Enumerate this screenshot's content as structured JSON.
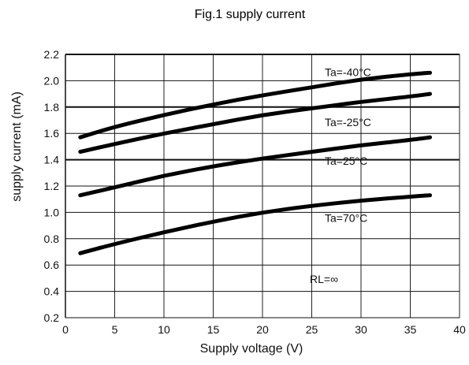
{
  "chart_data": {
    "type": "line",
    "title": "Fig.1 supply current",
    "xlabel": "Supply voltage  (V)",
    "ylabel": "supply current  (mA)",
    "xlim": [
      0,
      40
    ],
    "ylim": [
      0.2,
      2.2
    ],
    "xticks": [
      "0",
      "5",
      "10",
      "15",
      "20",
      "25",
      "30",
      "35",
      "40"
    ],
    "yticks": [
      "0.2",
      "0.4",
      "0.6",
      "0.8",
      "1.0",
      "1.2",
      "1.4",
      "1.6",
      "1.8",
      "2.0",
      "2.2"
    ],
    "grid": true,
    "series": [
      {
        "name": "Ta=-40°C",
        "x": [
          1.5,
          5,
          10,
          15,
          20,
          25,
          30,
          35,
          37
        ],
        "values": [
          1.57,
          1.65,
          1.74,
          1.82,
          1.89,
          1.95,
          2.01,
          2.05,
          2.06
        ]
      },
      {
        "name": "Ta=-25°C",
        "x": [
          1.5,
          5,
          10,
          15,
          20,
          25,
          30,
          35,
          37
        ],
        "values": [
          1.46,
          1.52,
          1.6,
          1.67,
          1.74,
          1.79,
          1.84,
          1.88,
          1.9
        ]
      },
      {
        "name": "Ta=25°C",
        "x": [
          1.5,
          5,
          10,
          15,
          20,
          25,
          30,
          35,
          37
        ],
        "values": [
          1.13,
          1.19,
          1.28,
          1.35,
          1.41,
          1.46,
          1.51,
          1.55,
          1.57
        ]
      },
      {
        "name": "Ta=70°C",
        "x": [
          1.5,
          5,
          10,
          15,
          20,
          25,
          30,
          35,
          37
        ],
        "values": [
          0.69,
          0.76,
          0.85,
          0.93,
          1.0,
          1.05,
          1.09,
          1.12,
          1.13
        ]
      }
    ],
    "annotations": [
      "RL=∞"
    ]
  }
}
